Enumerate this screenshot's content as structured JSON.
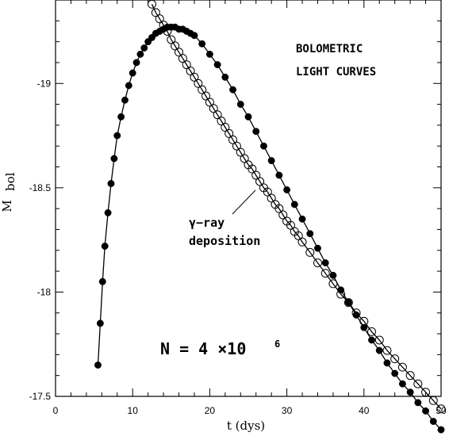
{
  "chart_data": {
    "type": "scatter",
    "xlabel": "t (dys)",
    "ylabel": "M",
    "ylabel_sub": "bol",
    "xlim": [
      0,
      50
    ],
    "ylim": [
      -17.5,
      -19.4
    ],
    "y_inverted": true,
    "x_ticks": [
      0,
      10,
      20,
      30,
      40,
      50
    ],
    "x_tick_labels": [
      "0",
      "10",
      "20",
      "30",
      "40",
      "50"
    ],
    "y_ticks": [
      -19,
      -18.5,
      -18,
      -17.5
    ],
    "y_tick_labels": [
      "-19",
      "-18.5",
      "-18",
      "-17.5"
    ],
    "grid": false,
    "annotations": {
      "title_line1": "BOLOMETRIC",
      "title_line2": "LIGHT CURVES",
      "gamma_line1": "γ−ray",
      "gamma_line2": "deposition",
      "n_text": "N  =  4  ×10",
      "n_exp": "6"
    },
    "series": [
      {
        "marker": "filled-circle",
        "x": [
          5.5,
          5.8,
          6.1,
          6.4,
          6.8,
          7.2,
          7.6,
          8.0,
          8.5,
          9.0,
          9.5,
          10.0,
          10.5,
          11.0,
          11.5,
          12.0,
          12.5,
          13.0,
          13.5,
          14.0,
          14.5,
          15.0,
          15.5,
          16.0,
          16.5,
          17.0,
          17.5,
          18.0,
          19.0,
          20.0,
          21.0,
          22.0,
          23.0,
          24.0,
          25.0,
          26.0,
          27.0,
          28.0,
          29.0,
          30.0,
          31.0,
          32.0,
          33.0,
          34.0,
          35.0,
          36.0,
          37.0,
          38.0,
          39.0,
          40.0,
          41.0,
          42.0,
          43.0,
          44.0,
          45.0,
          46.0,
          47.0,
          48.0,
          49.0,
          50.0
        ],
        "y": [
          -17.65,
          -17.85,
          -18.05,
          -18.22,
          -18.38,
          -18.52,
          -18.64,
          -18.75,
          -18.84,
          -18.92,
          -18.99,
          -19.05,
          -19.1,
          -19.14,
          -19.17,
          -19.2,
          -19.22,
          -19.24,
          -19.25,
          -19.26,
          -19.27,
          -19.27,
          -19.27,
          -19.26,
          -19.26,
          -19.25,
          -19.24,
          -19.23,
          -19.19,
          -19.14,
          -19.09,
          -19.03,
          -18.97,
          -18.9,
          -18.84,
          -18.77,
          -18.7,
          -18.63,
          -18.56,
          -18.49,
          -18.42,
          -18.35,
          -18.28,
          -18.21,
          -18.14,
          -18.08,
          -18.01,
          -17.95,
          -17.89,
          -17.83,
          -17.77,
          -17.72,
          -17.66,
          -17.61,
          -17.56,
          -17.52,
          -17.47,
          -17.43,
          -17.38,
          -17.34
        ]
      },
      {
        "marker": "open-circle",
        "x": [
          12.5,
          13.0,
          13.5,
          14.0,
          14.5,
          15.0,
          15.5,
          16.0,
          16.5,
          17.0,
          17.5,
          18.0,
          18.5,
          19.0,
          19.5,
          20.0,
          20.5,
          21.0,
          21.5,
          22.0,
          22.5,
          23.0,
          23.5,
          24.0,
          24.5,
          25.0,
          25.5,
          26.0,
          26.5,
          27.0,
          27.5,
          28.0,
          28.5,
          29.0,
          29.5,
          30.0,
          30.5,
          31.0,
          31.5,
          32.0,
          33.0,
          34.0,
          35.0,
          36.0,
          37.0,
          38.0,
          39.0,
          40.0,
          41.0,
          42.0,
          43.0,
          44.0,
          45.0,
          46.0,
          47.0,
          48.0,
          49.0,
          50.0
        ],
        "y": [
          -19.38,
          -19.34,
          -19.31,
          -19.28,
          -19.25,
          -19.21,
          -19.18,
          -19.15,
          -19.12,
          -19.09,
          -19.06,
          -19.03,
          -19.0,
          -18.97,
          -18.94,
          -18.91,
          -18.88,
          -18.85,
          -18.82,
          -18.79,
          -18.76,
          -18.73,
          -18.7,
          -18.67,
          -18.64,
          -18.61,
          -18.59,
          -18.56,
          -18.53,
          -18.5,
          -18.48,
          -18.45,
          -18.42,
          -18.4,
          -18.37,
          -18.34,
          -18.32,
          -18.29,
          -18.27,
          -18.24,
          -18.19,
          -18.14,
          -18.09,
          -18.04,
          -17.99,
          -17.95,
          -17.9,
          -17.86,
          -17.81,
          -17.77,
          -17.72,
          -17.68,
          -17.64,
          -17.6,
          -17.56,
          -17.52,
          -17.48,
          -17.44
        ]
      }
    ]
  }
}
